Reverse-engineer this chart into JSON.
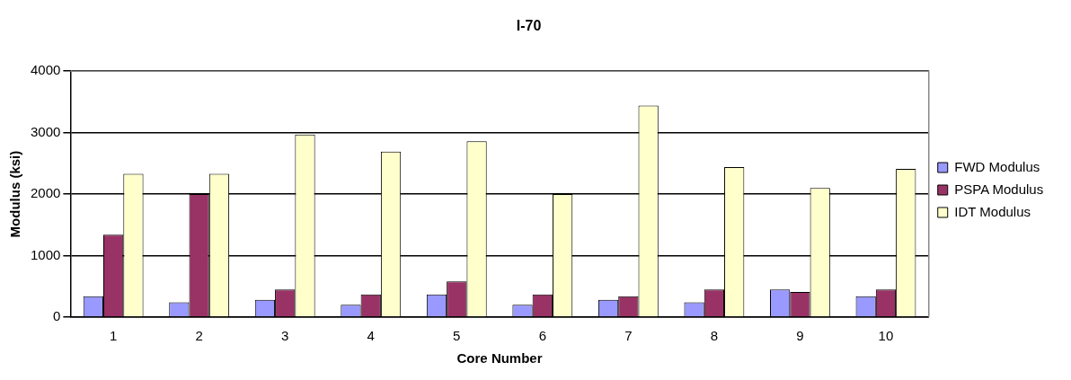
{
  "chart_data": {
    "type": "bar",
    "title": "I-70",
    "xlabel": "Core Number",
    "ylabel": "Modulus (ksi)",
    "categories": [
      "1",
      "2",
      "3",
      "4",
      "5",
      "6",
      "7",
      "8",
      "9",
      "10"
    ],
    "series": [
      {
        "name": "FWD Modulus",
        "color": "#9999ff",
        "values": [
          340,
          240,
          280,
          200,
          370,
          200,
          280,
          240,
          450,
          340
        ]
      },
      {
        "name": "PSPA Modulus",
        "color": "#993366",
        "values": [
          1340,
          2000,
          450,
          370,
          580,
          370,
          340,
          450,
          410,
          450
        ]
      },
      {
        "name": "IDT Modulus",
        "color": "#ffffcc",
        "values": [
          2330,
          2330,
          2970,
          2690,
          2860,
          2000,
          3440,
          2440,
          2100,
          2410
        ]
      }
    ],
    "ylim": [
      0,
      4000
    ],
    "yticks": [
      0,
      1000,
      2000,
      3000,
      4000
    ],
    "grid": "y",
    "legend": "right"
  }
}
